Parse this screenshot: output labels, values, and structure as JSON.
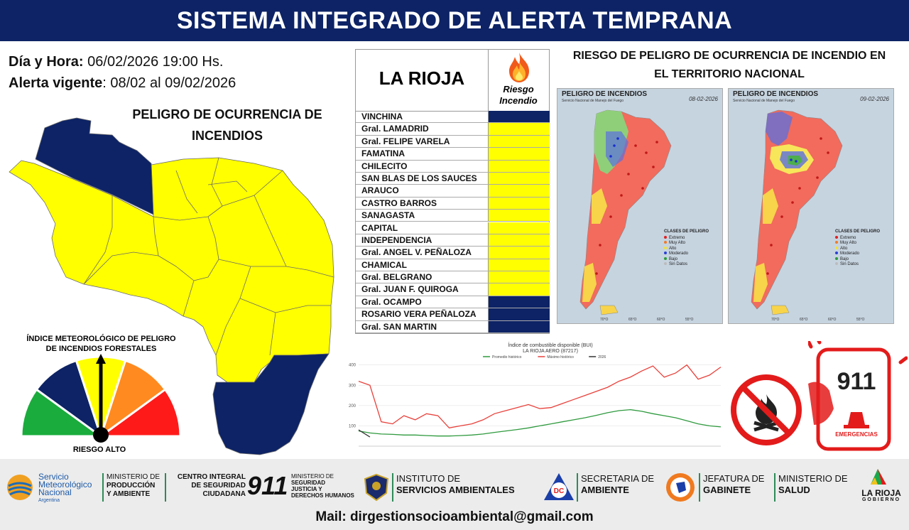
{
  "header": {
    "title": "SISTEMA INTEGRADO DE ALERTA TEMPRANA"
  },
  "info": {
    "datetime_label": "Día y Hora:",
    "datetime_value": " 06/02/2026  19:00 Hs.",
    "alert_label": "Alerta vigente",
    "alert_value": ": 08/02 al 09/02/2026"
  },
  "province_map": {
    "title_line1": "PELIGRO DE OCURRENCIA DE",
    "title_line2": "INCENDIOS",
    "colors": {
      "yellow": "#ffff00",
      "navy": "#0d2366"
    }
  },
  "gauge": {
    "title_line1": "ÍNDICE METEOROLÓGICO DE PELIGRO",
    "title_line2": "DE INCENDIOS FORESTALES",
    "label": "RIESGO ALTO",
    "segment_colors": [
      "#1aac3c",
      "#0d2366",
      "#ffff00",
      "#ff8a1f",
      "#ff1a1a"
    ]
  },
  "risk_table": {
    "province": "LA RIOJA",
    "header_line1": "Riesgo",
    "header_line2": "Incendio",
    "fire_icon": "fire-icon",
    "rows": [
      {
        "name": "VINCHINA",
        "color": "#0d2366"
      },
      {
        "name": "Gral. LAMADRID",
        "color": "#ffff00"
      },
      {
        "name": "Gral. FELIPE VARELA",
        "color": "#ffff00"
      },
      {
        "name": "FAMATINA",
        "color": "#ffff00"
      },
      {
        "name": "CHILECITO",
        "color": "#ffff00"
      },
      {
        "name": "SAN BLAS DE LOS SAUCES",
        "color": "#ffff00"
      },
      {
        "name": "ARAUCO",
        "color": "#ffff00"
      },
      {
        "name": "CASTRO BARROS",
        "color": "#ffff00"
      },
      {
        "name": "SANAGASTA",
        "color": "#ffff00"
      },
      {
        "name": "CAPITAL",
        "color": "#ffff00"
      },
      {
        "name": "INDEPENDENCIA",
        "color": "#ffff00"
      },
      {
        "name": "Gral. ANGEL V. PEÑALOZA",
        "color": "#ffff00"
      },
      {
        "name": "CHAMICAL",
        "color": "#ffff00"
      },
      {
        "name": "Gral. BELGRANO",
        "color": "#ffff00"
      },
      {
        "name": "Gral. JUAN F. QUIROGA",
        "color": "#ffff00"
      },
      {
        "name": "Gral. OCAMPO",
        "color": "#0d2366"
      },
      {
        "name": "ROSARIO VERA PEÑALOZA",
        "color": "#0d2366"
      },
      {
        "name": "Gral. SAN MARTIN",
        "color": "#0d2366"
      }
    ]
  },
  "national_maps": {
    "title_line1": "RIESGO DE PELIGRO DE OCURRENCIA DE INCENDIO EN",
    "title_line2": "EL TERRITORIO NACIONAL",
    "maps": [
      {
        "title": "PELIGRO DE INCENDIOS",
        "subtitle": "Servicio Nacional de Manejo del Fuego",
        "date": "08-02-2026"
      },
      {
        "title": "PELIGRO DE INCENDIOS",
        "subtitle": "Servicio Nacional de Manejo del Fuego",
        "date": "09-02-2026"
      }
    ],
    "legend_title": "CLASES DE PELIGRO",
    "legend": [
      {
        "label": "Extremo",
        "color": "#e02020"
      },
      {
        "label": "Muy Alto",
        "color": "#f07a2a"
      },
      {
        "label": "Alto",
        "color": "#f2e23a"
      },
      {
        "label": "Moderado",
        "color": "#2a3fd8"
      },
      {
        "label": "Bajo",
        "color": "#2a9a3a"
      },
      {
        "label": "Sin Datos",
        "color": "#bbbbbb"
      }
    ],
    "lon_labels": [
      "70°O",
      "65°O",
      "60°O",
      "55°O"
    ]
  },
  "chart_data": {
    "type": "line",
    "title": "Índice de combustible disponible (BUI)",
    "subtitle": "LA RIOJA AERO (87217)",
    "series": [
      {
        "name": "Promedio histórico",
        "color": "#2e9a3e",
        "values": [
          75,
          65,
          60,
          58,
          55,
          55,
          52,
          50,
          50,
          52,
          55,
          60,
          68,
          75,
          82,
          90,
          100,
          110,
          120,
          130,
          140,
          152,
          165,
          175,
          180,
          172,
          160,
          150,
          140,
          125,
          110,
          100,
          95
        ]
      },
      {
        "name": "Máximo histórico",
        "color": "#e8403a",
        "values": [
          320,
          300,
          120,
          110,
          150,
          130,
          160,
          150,
          90,
          100,
          110,
          130,
          160,
          175,
          190,
          205,
          185,
          190,
          210,
          230,
          250,
          270,
          290,
          320,
          340,
          370,
          395,
          340,
          360,
          400,
          330,
          350,
          390
        ]
      },
      {
        "name": "2026",
        "color": "#333333",
        "values": [
          80,
          45,
          null,
          null,
          null,
          null,
          null,
          null,
          null,
          null,
          null,
          null,
          null,
          null,
          null,
          null,
          null,
          null,
          null,
          null,
          null,
          null,
          null,
          null,
          null,
          null,
          null,
          null,
          null,
          null,
          null,
          null,
          null
        ]
      }
    ],
    "yticks": [
      100,
      200,
      300,
      400
    ],
    "ylim": [
      0,
      420
    ]
  },
  "emergency": {
    "number": "911",
    "text": "EMERGENCIAS"
  },
  "footer": {
    "smn_line1": "Servicio",
    "smn_line2": "Meteorológico",
    "smn_line3": "Nacional",
    "smn_line4": "Argentina",
    "min_prod_line1": "MINISTERIO DE",
    "min_prod_line2": "PRODUCCIÓN",
    "min_prod_line3": "Y AMBIENTE",
    "centro_line1": "CENTRO INTEGRAL",
    "centro_line2": "DE SEGURIDAD",
    "centro_line3": "CIUDADANA",
    "centro_number": "911",
    "min_seg_line1": "MINISTERIO DE",
    "min_seg_line2": "SEGURIDAD",
    "min_seg_line3": "JUSTICIA Y",
    "min_seg_line4": "DERECHOS HUMANOS",
    "isa_line1": "INSTITUTO DE",
    "isa_line2": "SERVICIOS AMBIENTALES",
    "dc_logo": "DC",
    "sec_line1": "SECRETARIA DE",
    "sec_line2": "AMBIENTE",
    "jef_line1": "JEFATURA DE",
    "jef_line2": "GABINETE",
    "sal_line1": "MINISTERIO DE",
    "sal_line2": "SALUD",
    "gob_line1": "LA RIOJA",
    "gob_line2": "GOBIERNO",
    "mail": "Mail: dirgestionsocioambiental@gmail.com"
  }
}
